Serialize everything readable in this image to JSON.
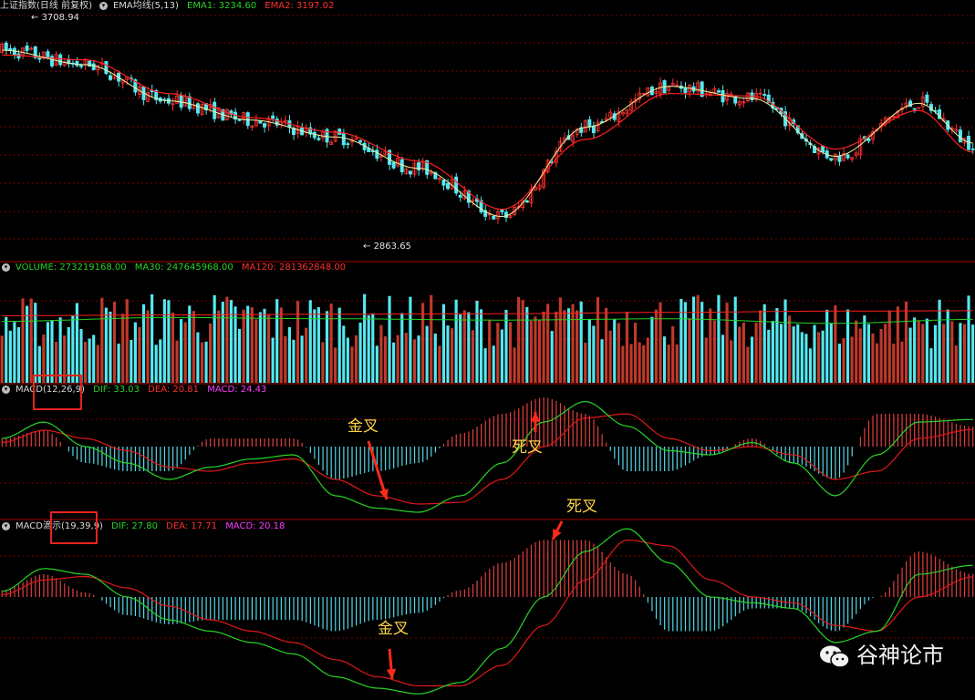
{
  "panels": {
    "price": {
      "title": "上证指数(日线 前复权)",
      "indicator": "EMA均线(5,13)",
      "ema1_label": "EMA1: 3234.60",
      "ema2_label": "EMA2: 3197.02",
      "high_label": "3708.94",
      "low_label": "2863.65"
    },
    "volume": {
      "title": "VOLUME: 273219168.00",
      "ma30_label": "MA30: 247645968.00",
      "ma120_label": "MA120: 281362848.00"
    },
    "macd1": {
      "name": "MACD",
      "params": "(12,26,9)",
      "dif_label": "DIF: 33.03",
      "dea_label": "DEA: 20.81",
      "macd_label": "MACD: 24.43",
      "golden_cross": "金叉",
      "death_cross": "死叉"
    },
    "macd2": {
      "name": "MACD滴示",
      "params": "(19,39,9)",
      "dif_label": "DIF: 27.80",
      "dea_label": "DEA: 17.71",
      "macd_label": "MACD: 20.18",
      "golden_cross": "金叉",
      "death_cross": "死叉"
    }
  },
  "watermark": "谷神论市",
  "colors": {
    "up": "#ff3030",
    "down": "#55e8f0",
    "ema1": "#f2f2a0",
    "ema2": "#ff2020",
    "dif": "#27d327",
    "dea": "#e01818",
    "hist_pos": "#e04040",
    "hist_neg": "#55d8e8",
    "vol_up": "#c0392b",
    "vol_down": "#55e8f0",
    "ma30": "#27d327",
    "ma120": "#ff2020",
    "grid": "#7a0000",
    "divider": "#b00000"
  },
  "chart_data": [
    {
      "type": "line",
      "description_free": true,
      "title": "上证指数(日线 前复权)",
      "series": [
        {
          "name": "EMA1",
          "x": [
            0,
            20,
            40,
            60,
            80,
            100,
            120,
            140,
            160,
            180,
            200,
            220,
            233
          ],
          "values": [
            3620,
            3560,
            3410,
            3330,
            3260,
            3130,
            2930,
            3300,
            3470,
            3420,
            3180,
            3400,
            3234.6
          ]
        },
        {
          "name": "EMA2",
          "x": [
            0,
            20,
            40,
            60,
            80,
            100,
            120,
            140,
            160,
            180,
            200,
            220,
            233
          ],
          "values": [
            3600,
            3580,
            3440,
            3340,
            3280,
            3160,
            2960,
            3250,
            3440,
            3430,
            3210,
            3370,
            3197.02
          ]
        }
      ],
      "annotations": [
        {
          "label": "3708.94",
          "x": 8,
          "y": 3708.94
        },
        {
          "label": "2863.65",
          "x": 88,
          "y": 2863.65
        }
      ],
      "ylim": [
        2800,
        3760
      ]
    },
    {
      "type": "bar",
      "title": "VOLUME",
      "series": [
        {
          "name": "MA30",
          "x": [
            0,
            40,
            80,
            120,
            160,
            200,
            233
          ],
          "values": [
            240,
            255,
            250,
            245,
            250,
            232,
            247.6
          ]
        },
        {
          "name": "MA120",
          "x": [
            0,
            40,
            80,
            120,
            160,
            200,
            233
          ],
          "values": [
            262,
            265,
            268,
            270,
            275,
            280,
            281.4
          ]
        }
      ],
      "last_value": 273219168.0
    },
    {
      "type": "line",
      "title": "MACD(12,26,9)",
      "series": [
        {
          "name": "DIF",
          "x": [
            0,
            10,
            20,
            30,
            40,
            50,
            60,
            70,
            80,
            90,
            100,
            110,
            120,
            130,
            140,
            150,
            160,
            170,
            180,
            190,
            200,
            210,
            220,
            233
          ],
          "values": [
            10,
            30,
            0,
            -20,
            -40,
            -25,
            -15,
            -10,
            -60,
            -75,
            -80,
            -60,
            -20,
            30,
            55,
            25,
            -5,
            -10,
            5,
            -20,
            -60,
            -10,
            30,
            33.03
          ]
        },
        {
          "name": "DEA",
          "x": [
            0,
            10,
            20,
            30,
            40,
            50,
            60,
            70,
            80,
            90,
            100,
            110,
            120,
            130,
            140,
            150,
            160,
            170,
            180,
            190,
            200,
            210,
            220,
            233
          ],
          "values": [
            5,
            20,
            10,
            -5,
            -25,
            -30,
            -20,
            -15,
            -40,
            -60,
            -70,
            -68,
            -40,
            0,
            35,
            40,
            10,
            -5,
            0,
            -10,
            -40,
            -30,
            10,
            20.81
          ]
        }
      ],
      "histogram_last": 24.43
    },
    {
      "type": "line",
      "title": "MACD滴示(19,39,9)",
      "series": [
        {
          "name": "DIF",
          "x": [
            0,
            10,
            20,
            30,
            40,
            50,
            60,
            70,
            80,
            90,
            100,
            110,
            120,
            130,
            140,
            150,
            160,
            170,
            180,
            190,
            200,
            210,
            220,
            233
          ],
          "values": [
            5,
            25,
            20,
            0,
            -20,
            -30,
            -40,
            -50,
            -70,
            -80,
            -85,
            -75,
            -45,
            0,
            40,
            60,
            30,
            0,
            -5,
            -10,
            -40,
            -30,
            20,
            27.8
          ]
        },
        {
          "name": "DEA",
          "x": [
            0,
            10,
            20,
            30,
            40,
            50,
            60,
            70,
            80,
            90,
            100,
            110,
            120,
            130,
            140,
            150,
            160,
            170,
            180,
            190,
            200,
            210,
            220,
            233
          ],
          "values": [
            2,
            15,
            18,
            8,
            -8,
            -20,
            -30,
            -40,
            -55,
            -70,
            -78,
            -78,
            -60,
            -25,
            15,
            50,
            45,
            15,
            0,
            -5,
            -25,
            -30,
            0,
            17.71
          ]
        }
      ],
      "histogram_last": 20.18
    }
  ]
}
